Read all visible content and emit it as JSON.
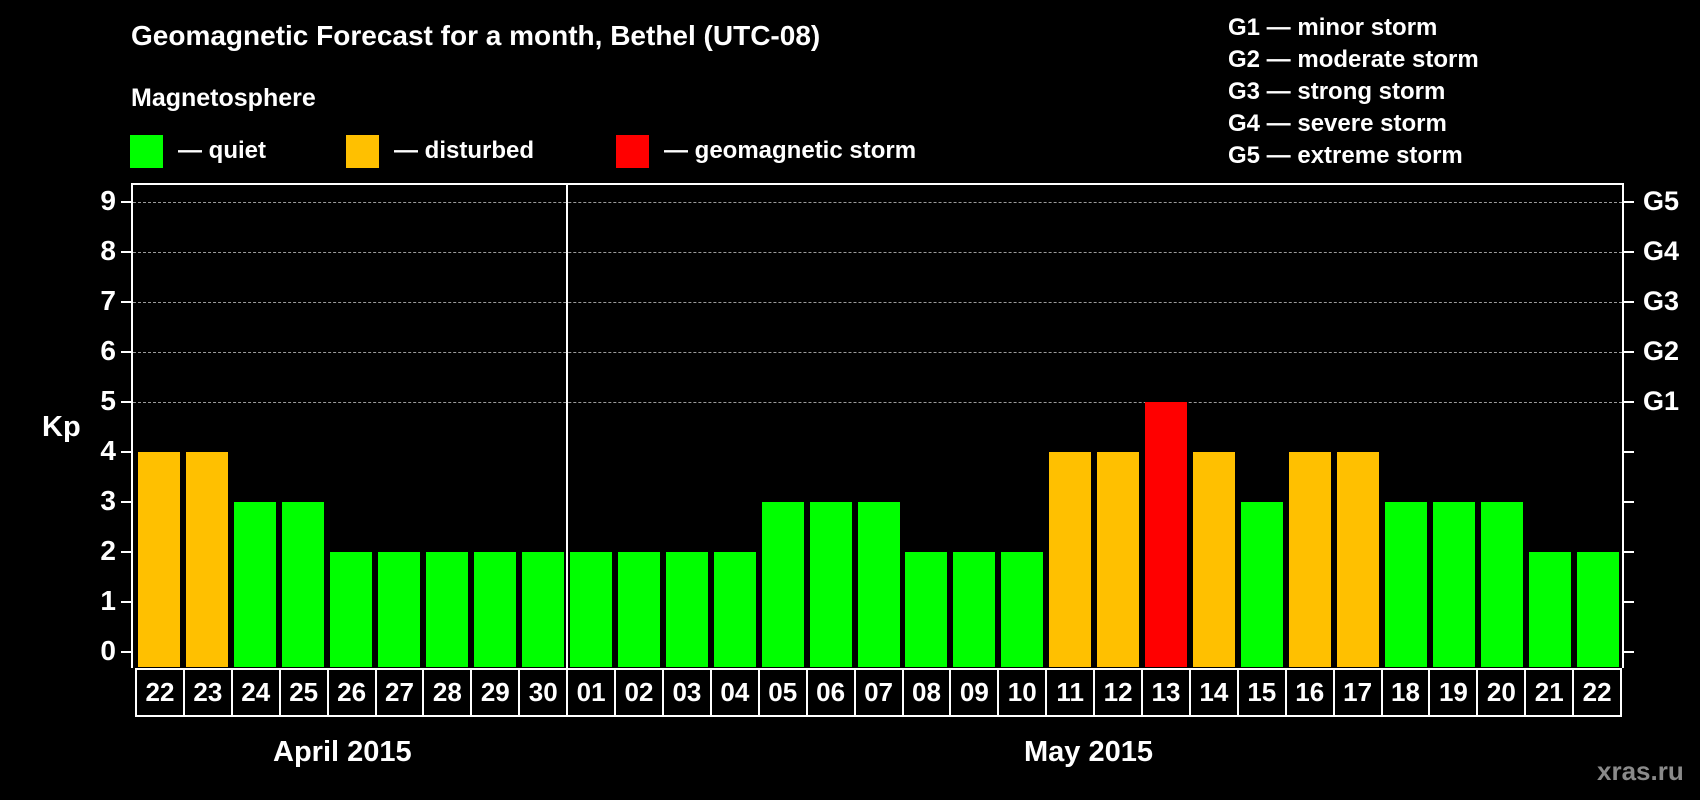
{
  "header": {
    "title": "Geomagnetic Forecast for a month, Bethel (UTC-08)",
    "subtitle": "Magnetosphere"
  },
  "legend": {
    "items": [
      {
        "label": "— quiet",
        "color": "#00ff00"
      },
      {
        "label": "— disturbed",
        "color": "#ffc000"
      },
      {
        "label": "— geomagnetic storm",
        "color": "#ff0000"
      }
    ]
  },
  "g_scale": {
    "items": [
      "G1 — minor storm",
      "G2 — moderate storm",
      "G3 — strong storm",
      "G4 — severe storm",
      "G5 — extreme storm"
    ]
  },
  "axes": {
    "ylabel": "Kp",
    "yticks": [
      "0",
      "1",
      "2",
      "3",
      "4",
      "5",
      "6",
      "7",
      "8",
      "9"
    ],
    "right_ticks": [
      {
        "value": 5,
        "label": "G1"
      },
      {
        "value": 6,
        "label": "G2"
      },
      {
        "value": 7,
        "label": "G3"
      },
      {
        "value": 8,
        "label": "G4"
      },
      {
        "value": 9,
        "label": "G5"
      }
    ]
  },
  "months": [
    {
      "label": "April 2015"
    },
    {
      "label": "May 2015"
    }
  ],
  "watermark": "xras.ru",
  "colors": {
    "quiet": "#00ff00",
    "disturbed": "#ffc000",
    "storm": "#ff0000",
    "background": "#000000",
    "grid": "#9a9a9a"
  },
  "chart_data": {
    "type": "bar",
    "title": "Geomagnetic Forecast for a month, Bethel (UTC-08)",
    "xlabel": "",
    "ylabel": "Kp",
    "ylim": [
      0,
      9
    ],
    "grid": "dashed horizontal at 5-9",
    "legend_position": "top",
    "categories": [
      "22",
      "23",
      "24",
      "25",
      "26",
      "27",
      "28",
      "29",
      "30",
      "01",
      "02",
      "03",
      "04",
      "05",
      "06",
      "07",
      "08",
      "09",
      "10",
      "11",
      "12",
      "13",
      "14",
      "15",
      "16",
      "17",
      "18",
      "19",
      "20",
      "21",
      "22"
    ],
    "month_groups": [
      {
        "label": "April 2015",
        "days": [
          "22",
          "23",
          "24",
          "25",
          "26",
          "27",
          "28",
          "29",
          "30"
        ]
      },
      {
        "label": "May 2015",
        "days": [
          "01",
          "02",
          "03",
          "04",
          "05",
          "06",
          "07",
          "08",
          "09",
          "10",
          "11",
          "12",
          "13",
          "14",
          "15",
          "16",
          "17",
          "18",
          "19",
          "20",
          "21",
          "22"
        ]
      }
    ],
    "values": [
      4,
      4,
      3,
      3,
      2,
      2,
      2,
      2,
      2,
      2,
      2,
      2,
      2,
      3,
      3,
      3,
      2,
      2,
      2,
      4,
      4,
      5,
      4,
      3,
      4,
      4,
      3,
      3,
      3,
      2,
      2
    ],
    "status": [
      "disturbed",
      "disturbed",
      "quiet",
      "quiet",
      "quiet",
      "quiet",
      "quiet",
      "quiet",
      "quiet",
      "quiet",
      "quiet",
      "quiet",
      "quiet",
      "quiet",
      "quiet",
      "quiet",
      "quiet",
      "quiet",
      "quiet",
      "disturbed",
      "disturbed",
      "storm",
      "disturbed",
      "quiet",
      "disturbed",
      "disturbed",
      "quiet",
      "quiet",
      "quiet",
      "quiet",
      "quiet"
    ],
    "legend": [
      "quiet",
      "disturbed",
      "geomagnetic storm"
    ],
    "secondary_yaxis": {
      "5": "G1",
      "6": "G2",
      "7": "G3",
      "8": "G4",
      "9": "G5"
    }
  }
}
